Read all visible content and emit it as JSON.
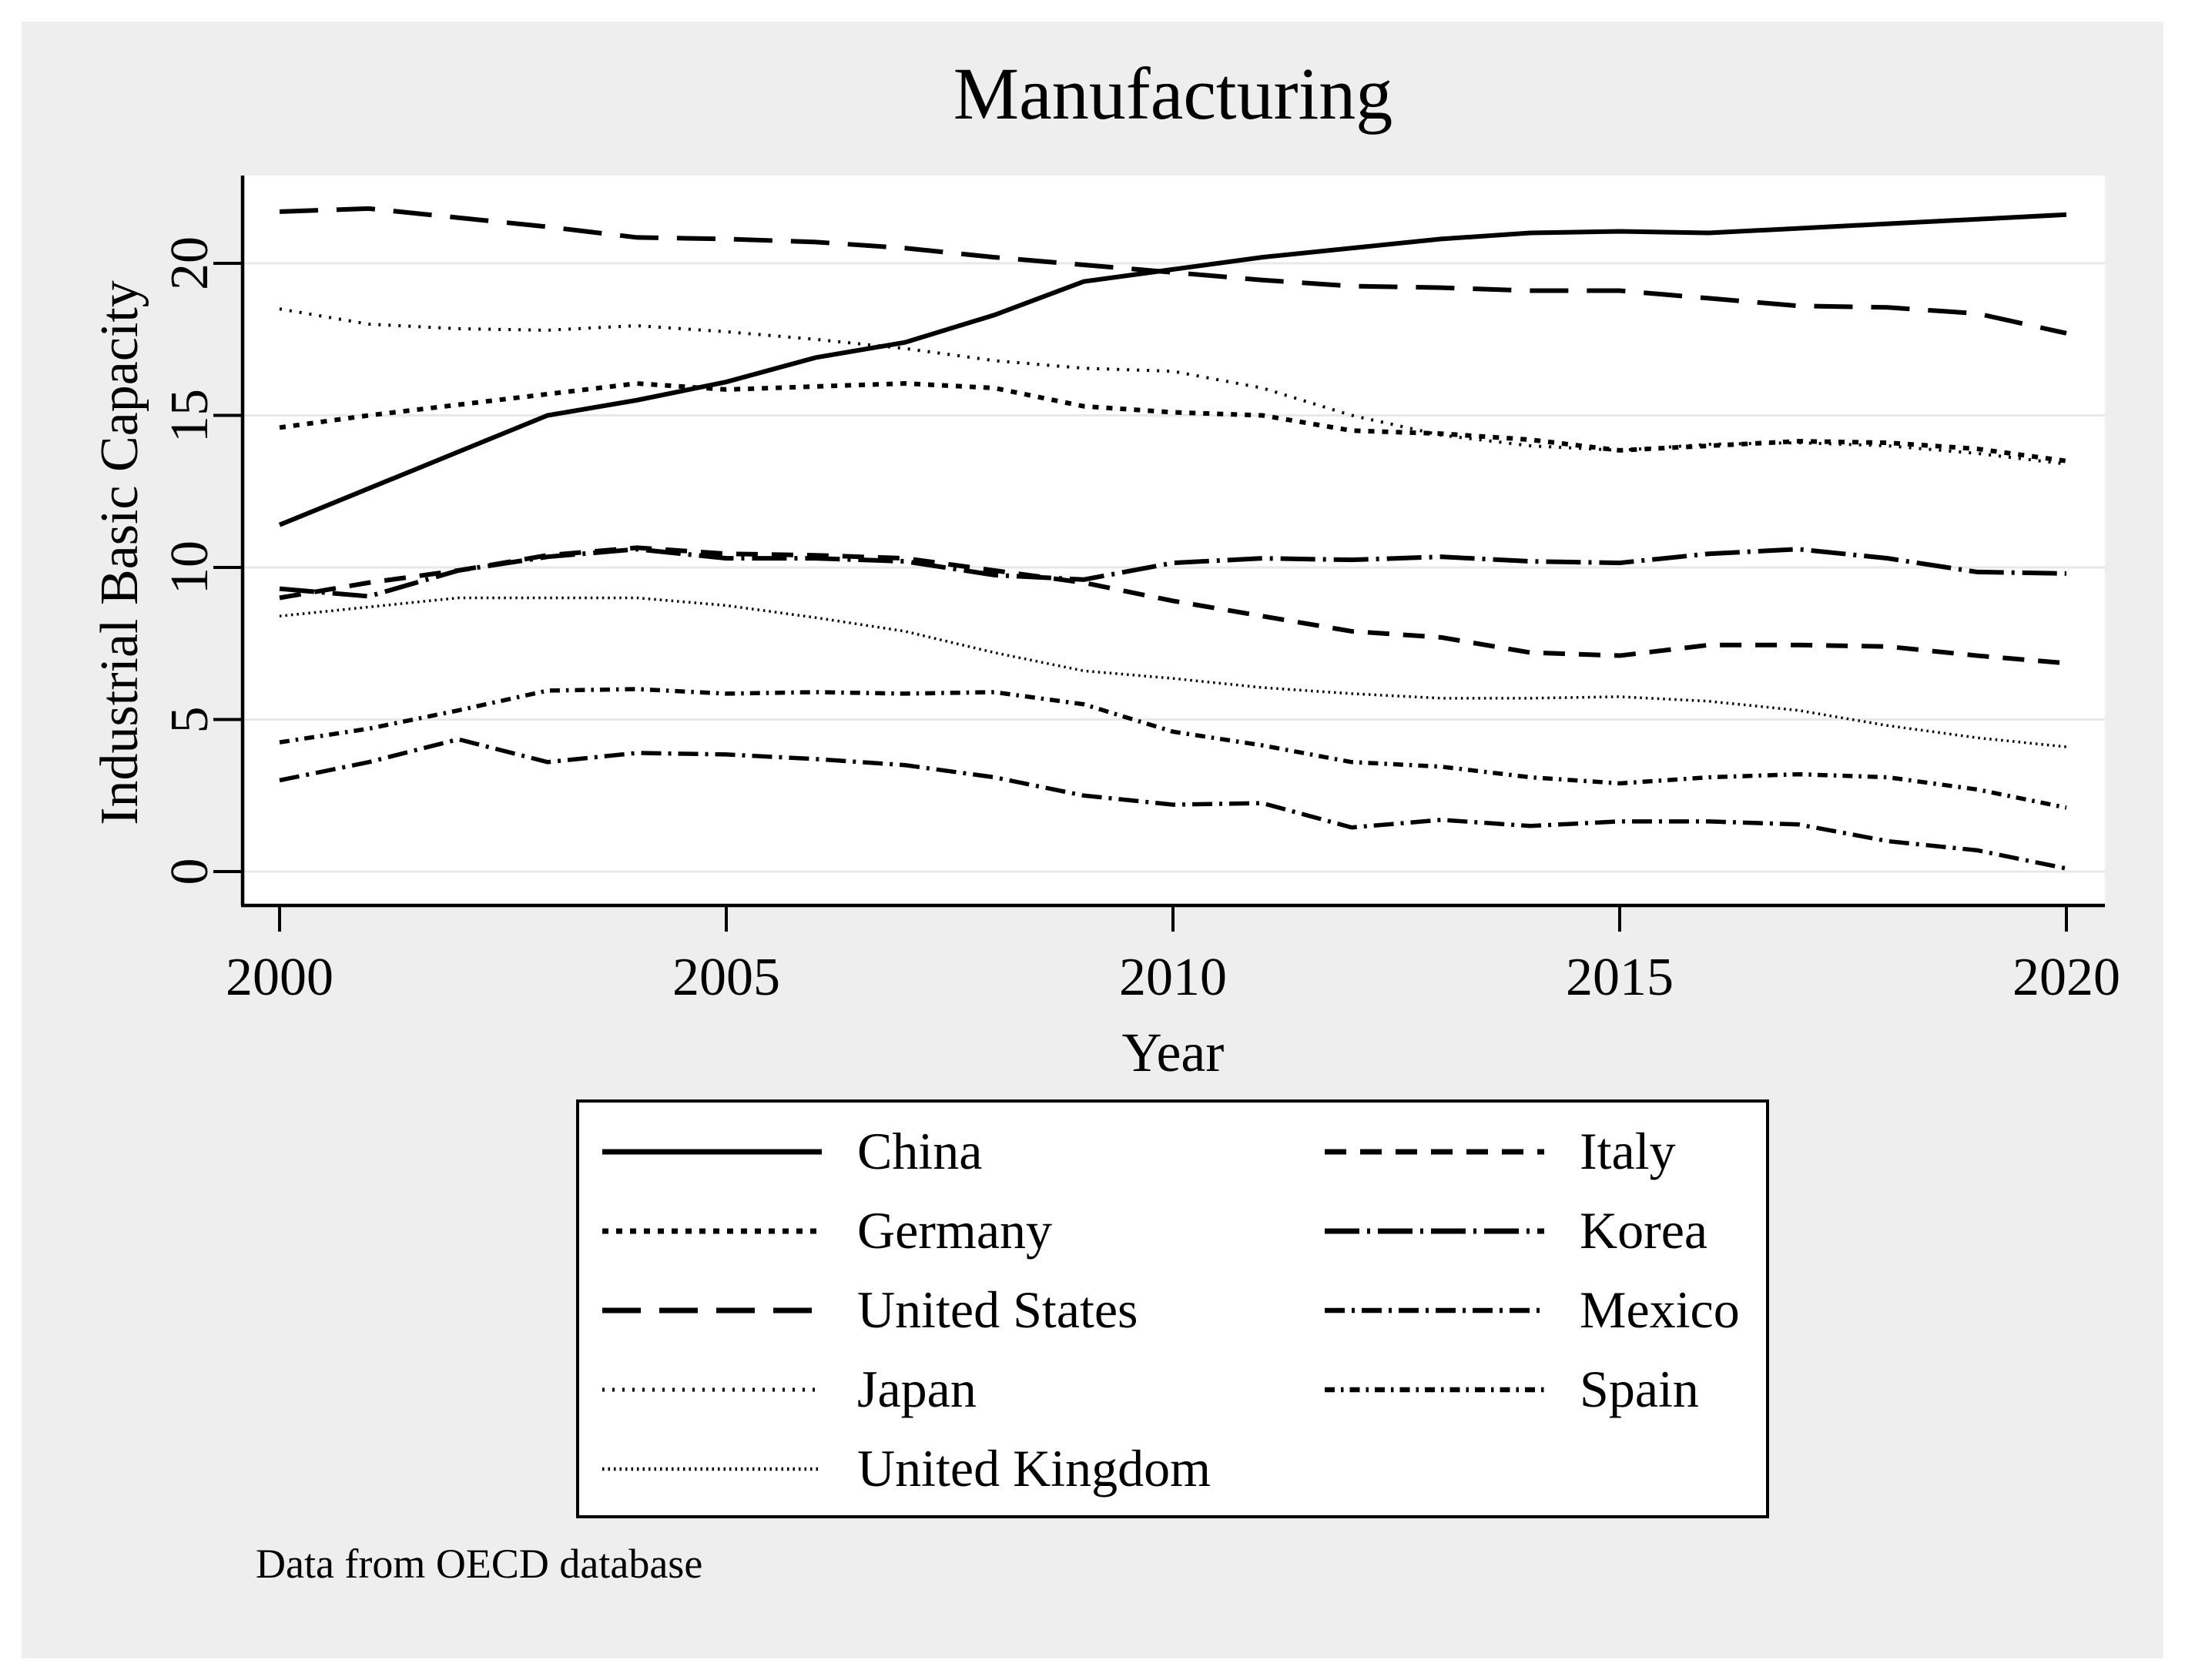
{
  "figure": {
    "caption": "Data from OECD database"
  },
  "colors": {
    "line": "#000000",
    "panel_bg": "#eeeeee",
    "plot_bg": "#ffffff",
    "grid": "#e8e8e8",
    "axis": "#000000"
  },
  "chart_data": {
    "type": "line",
    "title": "Manufacturing",
    "xlabel": "Year",
    "ylabel": "Industrial Basic Capacity",
    "x": [
      2000,
      2001,
      2002,
      2003,
      2004,
      2005,
      2006,
      2007,
      2008,
      2009,
      2010,
      2011,
      2012,
      2013,
      2014,
      2015,
      2016,
      2017,
      2018,
      2019,
      2020
    ],
    "x_ticks": [
      2000,
      2005,
      2010,
      2015,
      2020
    ],
    "x_tick_labels": [
      "2000",
      "2005",
      "2010",
      "2015",
      "2020"
    ],
    "y_ticks": [
      0,
      5,
      10,
      15,
      20
    ],
    "y_tick_labels": [
      "0",
      "5",
      "10",
      "15",
      "20"
    ],
    "xlim": [
      1999.57,
      2020.43
    ],
    "ylim": [
      -1.16,
      22.89
    ],
    "grid": "horizontal",
    "legend_position": "bottom",
    "legend_columns": [
      [
        "China",
        "Germany",
        "United States",
        "Japan",
        "United Kingdom"
      ],
      [
        "Italy",
        "Korea",
        "Mexico",
        "Spain"
      ]
    ],
    "series": [
      {
        "name": "China",
        "dash": "",
        "width": 6,
        "values": [
          11.4,
          12.6,
          13.8,
          15.0,
          15.5,
          16.1,
          16.9,
          17.4,
          18.3,
          19.4,
          19.8,
          20.2,
          20.5,
          20.8,
          21.0,
          21.05,
          21.0,
          21.15,
          21.3,
          21.45,
          21.6
        ]
      },
      {
        "name": "Germany",
        "dash": "8 10",
        "width": 6,
        "values": [
          14.6,
          15.0,
          15.35,
          15.7,
          16.05,
          15.85,
          15.95,
          16.05,
          15.9,
          15.3,
          15.1,
          15.0,
          14.5,
          14.4,
          14.2,
          13.85,
          14.0,
          14.15,
          14.1,
          13.9,
          13.5
        ]
      },
      {
        "name": "United States",
        "dash": "50 24",
        "width": 6,
        "values": [
          21.7,
          21.8,
          21.5,
          21.2,
          20.85,
          20.8,
          20.7,
          20.5,
          20.2,
          19.95,
          19.7,
          19.45,
          19.25,
          19.2,
          19.1,
          19.1,
          18.85,
          18.6,
          18.55,
          18.35,
          17.7
        ]
      },
      {
        "name": "Japan",
        "dash": "3 10",
        "width": 4,
        "values": [
          18.5,
          18.0,
          17.85,
          17.8,
          17.95,
          17.75,
          17.5,
          17.2,
          16.8,
          16.55,
          16.45,
          15.9,
          15.0,
          14.35,
          14.0,
          13.85,
          14.05,
          14.1,
          14.0,
          13.75,
          13.4
        ]
      },
      {
        "name": "United Kingdom",
        "dash": "2.5 5",
        "width": 3.5,
        "values": [
          8.4,
          8.7,
          9.0,
          9.0,
          9.0,
          8.75,
          8.35,
          7.9,
          7.2,
          6.6,
          6.35,
          6.05,
          5.85,
          5.7,
          5.7,
          5.75,
          5.6,
          5.3,
          4.8,
          4.4,
          4.1
        ]
      },
      {
        "name": "Italy",
        "dash": "28 18",
        "width": 6,
        "values": [
          9.0,
          9.5,
          9.9,
          10.4,
          10.65,
          10.45,
          10.4,
          10.3,
          9.9,
          9.5,
          8.9,
          8.4,
          7.9,
          7.7,
          7.2,
          7.1,
          7.45,
          7.45,
          7.4,
          7.1,
          6.85
        ]
      },
      {
        "name": "Korea",
        "dash": "45 10 4 10",
        "width": 6,
        "values": [
          9.3,
          9.05,
          9.9,
          10.35,
          10.6,
          10.3,
          10.3,
          10.2,
          9.75,
          9.6,
          10.15,
          10.3,
          10.25,
          10.35,
          10.2,
          10.15,
          10.45,
          10.6,
          10.3,
          9.85,
          9.8
        ]
      },
      {
        "name": "Mexico",
        "dash": "26 9 4 9",
        "width": 5.5,
        "values": [
          3.0,
          3.6,
          4.35,
          3.6,
          3.9,
          3.85,
          3.7,
          3.5,
          3.1,
          2.5,
          2.2,
          2.25,
          1.45,
          1.7,
          1.5,
          1.65,
          1.65,
          1.55,
          1.0,
          0.7,
          0.1
        ]
      },
      {
        "name": "Spain",
        "dash": "13 8 3.5 8",
        "width": 5.5,
        "values": [
          4.25,
          4.7,
          5.3,
          5.95,
          6.0,
          5.85,
          5.9,
          5.85,
          5.9,
          5.5,
          4.6,
          4.15,
          3.6,
          3.45,
          3.1,
          2.9,
          3.1,
          3.2,
          3.1,
          2.7,
          2.1
        ]
      }
    ]
  }
}
